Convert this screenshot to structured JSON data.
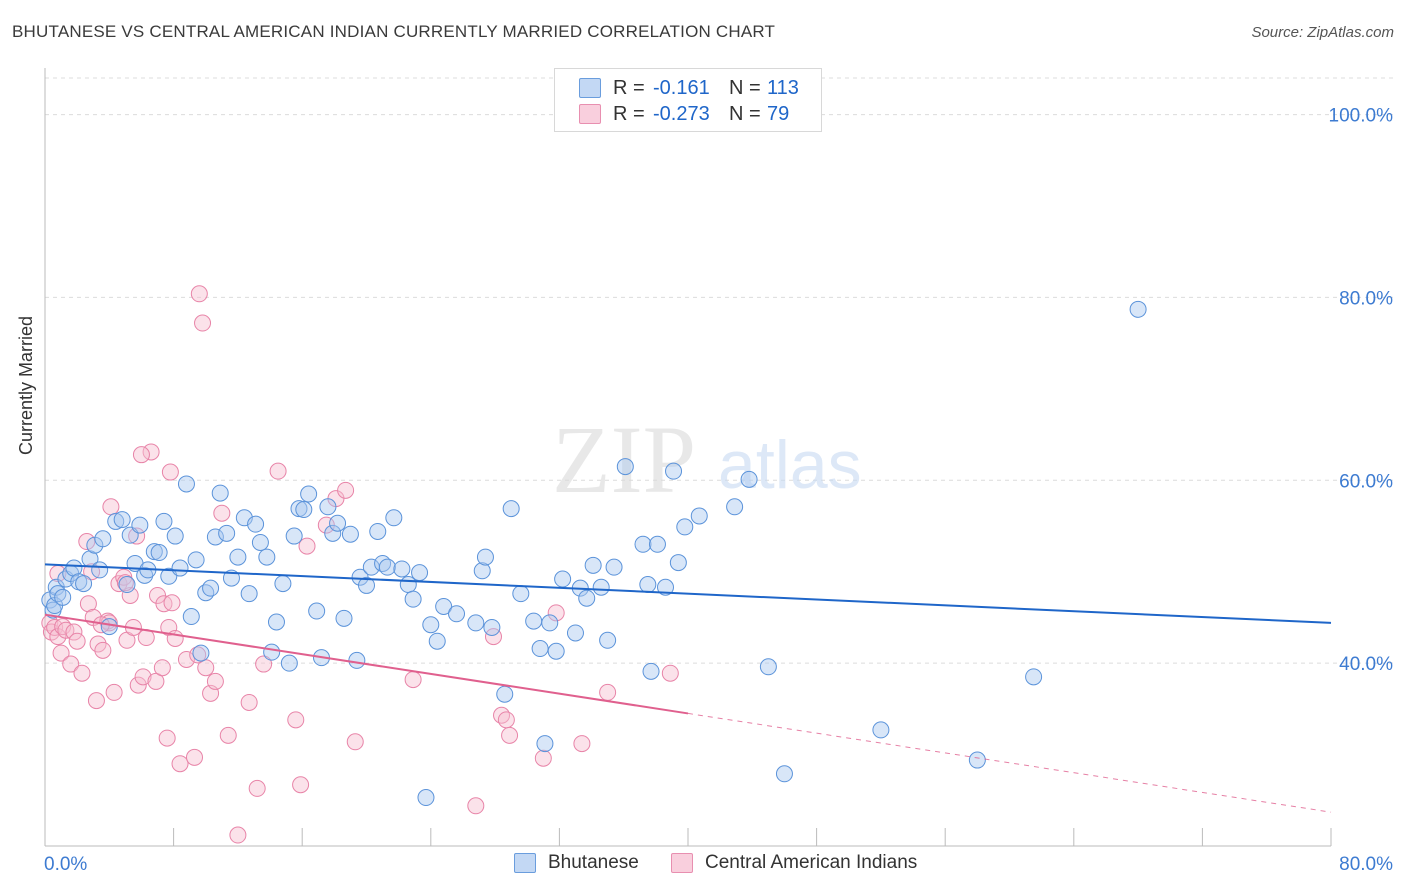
{
  "header": {
    "title": "BHUTANESE VS CENTRAL AMERICAN INDIAN CURRENTLY MARRIED CORRELATION CHART",
    "source": "Source: ZipAtlas.com"
  },
  "legend": {
    "rows": [
      {
        "r_label": "R =",
        "r_value": "-0.161",
        "n_label": "N =",
        "n_value": "113"
      },
      {
        "r_label": "R =",
        "r_value": "-0.273",
        "n_label": "N =",
        "n_value": "79"
      }
    ]
  },
  "watermark": {
    "zip": "ZIP",
    "atlas": "atlas"
  },
  "colors": {
    "blue_fill": "#a9c8f0",
    "blue_stroke": "#5b93da",
    "blue_line": "#1f66c9",
    "pink_fill": "#f7bfd1",
    "pink_stroke": "#e884a8",
    "pink_line": "#e0608e",
    "axis_text": "#3d7bd1",
    "grid": "#dcdcdc"
  },
  "chart_data": {
    "type": "scatter",
    "title": "BHUTANESE VS CENTRAL AMERICAN INDIAN CURRENTLY MARRIED CORRELATION CHART",
    "xlabel": "",
    "ylabel": "Currently Married",
    "xlim": [
      0,
      80
    ],
    "ylim": [
      20,
      104
    ],
    "x_tick_labels": [
      "0.0%",
      "80.0%"
    ],
    "y_ticks": [
      40,
      60,
      80,
      100
    ],
    "y_tick_labels": [
      "40.0%",
      "60.0%",
      "80.0%",
      "100.0%"
    ],
    "grid": true,
    "legend_position": "bottom",
    "series": [
      {
        "name": "Bhutanese",
        "trend": {
          "x": [
            0,
            80
          ],
          "y": [
            50.8,
            44.4
          ]
        },
        "points": [
          [
            0.3,
            46.9
          ],
          [
            0.5,
            45.8
          ],
          [
            0.6,
            46.3
          ],
          [
            0.7,
            48.3
          ],
          [
            0.8,
            47.6
          ],
          [
            1.1,
            47.2
          ],
          [
            1.3,
            49.2
          ],
          [
            1.6,
            49.8
          ],
          [
            1.8,
            50.4
          ],
          [
            2.1,
            48.9
          ],
          [
            2.4,
            48.7
          ],
          [
            2.8,
            51.4
          ],
          [
            3.1,
            52.9
          ],
          [
            3.4,
            50.2
          ],
          [
            3.6,
            53.6
          ],
          [
            4.0,
            44.0
          ],
          [
            4.4,
            55.5
          ],
          [
            4.8,
            55.7
          ],
          [
            5.1,
            48.6
          ],
          [
            5.3,
            54.0
          ],
          [
            5.6,
            50.9
          ],
          [
            5.9,
            55.1
          ],
          [
            6.2,
            49.6
          ],
          [
            6.4,
            50.2
          ],
          [
            6.8,
            52.2
          ],
          [
            7.1,
            52.1
          ],
          [
            7.4,
            55.5
          ],
          [
            7.7,
            49.5
          ],
          [
            8.1,
            53.9
          ],
          [
            8.4,
            50.4
          ],
          [
            8.8,
            59.6
          ],
          [
            9.1,
            45.1
          ],
          [
            9.4,
            51.3
          ],
          [
            9.7,
            41.1
          ],
          [
            10.0,
            47.7
          ],
          [
            10.3,
            48.2
          ],
          [
            10.6,
            53.8
          ],
          [
            10.9,
            58.6
          ],
          [
            11.3,
            54.2
          ],
          [
            11.6,
            49.3
          ],
          [
            12.0,
            51.6
          ],
          [
            12.4,
            55.9
          ],
          [
            12.7,
            47.6
          ],
          [
            13.1,
            55.2
          ],
          [
            13.4,
            53.2
          ],
          [
            13.8,
            51.6
          ],
          [
            14.1,
            41.2
          ],
          [
            14.4,
            44.5
          ],
          [
            14.8,
            48.7
          ],
          [
            15.2,
            40.0
          ],
          [
            15.5,
            53.9
          ],
          [
            15.8,
            56.9
          ],
          [
            16.1,
            56.8
          ],
          [
            16.4,
            58.5
          ],
          [
            16.9,
            45.7
          ],
          [
            17.2,
            40.6
          ],
          [
            17.6,
            57.1
          ],
          [
            17.9,
            54.2
          ],
          [
            18.2,
            55.3
          ],
          [
            18.6,
            44.9
          ],
          [
            19.0,
            54.1
          ],
          [
            19.4,
            40.3
          ],
          [
            19.6,
            49.4
          ],
          [
            20.0,
            48.5
          ],
          [
            20.3,
            50.5
          ],
          [
            20.7,
            54.4
          ],
          [
            21.0,
            50.9
          ],
          [
            21.3,
            50.5
          ],
          [
            21.7,
            55.9
          ],
          [
            22.2,
            50.3
          ],
          [
            22.6,
            48.6
          ],
          [
            22.9,
            47.0
          ],
          [
            23.3,
            49.9
          ],
          [
            23.7,
            25.3
          ],
          [
            24.0,
            44.2
          ],
          [
            24.4,
            42.4
          ],
          [
            24.8,
            46.2
          ],
          [
            25.6,
            45.4
          ],
          [
            26.8,
            44.4
          ],
          [
            27.2,
            50.1
          ],
          [
            27.4,
            51.6
          ],
          [
            27.8,
            43.9
          ],
          [
            28.6,
            36.6
          ],
          [
            29.0,
            56.9
          ],
          [
            29.6,
            47.6
          ],
          [
            30.4,
            44.6
          ],
          [
            30.8,
            41.6
          ],
          [
            31.1,
            31.2
          ],
          [
            31.4,
            44.4
          ],
          [
            31.8,
            41.3
          ],
          [
            32.2,
            49.2
          ],
          [
            33.0,
            43.3
          ],
          [
            33.3,
            48.2
          ],
          [
            33.7,
            47.1
          ],
          [
            34.1,
            50.7
          ],
          [
            34.6,
            48.3
          ],
          [
            35.0,
            42.5
          ],
          [
            35.4,
            50.5
          ],
          [
            36.1,
            61.5
          ],
          [
            37.2,
            53.0
          ],
          [
            37.5,
            48.6
          ],
          [
            37.7,
            39.1
          ],
          [
            38.1,
            53.0
          ],
          [
            38.6,
            48.3
          ],
          [
            39.1,
            61.0
          ],
          [
            39.4,
            51.0
          ],
          [
            39.8,
            54.9
          ],
          [
            40.7,
            56.1
          ],
          [
            42.9,
            57.1
          ],
          [
            43.8,
            60.1
          ],
          [
            45.0,
            39.6
          ],
          [
            46.0,
            27.9
          ],
          [
            52.0,
            32.7
          ],
          [
            58.0,
            29.4
          ],
          [
            61.5,
            38.5
          ],
          [
            68.0,
            78.7
          ]
        ]
      },
      {
        "name": "Central American Indians",
        "trend": {
          "x": [
            0,
            40
          ],
          "y": [
            45.3,
            34.5
          ]
        },
        "points": [
          [
            0.3,
            44.4
          ],
          [
            0.4,
            43.4
          ],
          [
            0.6,
            43.9
          ],
          [
            0.8,
            42.9
          ],
          [
            1.0,
            41.1
          ],
          [
            1.1,
            44.0
          ],
          [
            1.3,
            43.6
          ],
          [
            1.6,
            39.9
          ],
          [
            1.8,
            43.4
          ],
          [
            2.0,
            42.4
          ],
          [
            2.3,
            38.9
          ],
          [
            2.6,
            53.3
          ],
          [
            2.7,
            46.5
          ],
          [
            3.0,
            45.0
          ],
          [
            3.2,
            35.9
          ],
          [
            3.3,
            42.1
          ],
          [
            3.6,
            41.4
          ],
          [
            3.9,
            44.6
          ],
          [
            4.1,
            57.1
          ],
          [
            4.3,
            36.8
          ],
          [
            4.6,
            48.7
          ],
          [
            4.9,
            49.4
          ],
          [
            5.1,
            42.5
          ],
          [
            5.3,
            47.4
          ],
          [
            5.5,
            43.9
          ],
          [
            5.7,
            53.9
          ],
          [
            5.8,
            37.6
          ],
          [
            6.1,
            38.5
          ],
          [
            6.3,
            42.8
          ],
          [
            6.6,
            63.1
          ],
          [
            6.9,
            38.0
          ],
          [
            7.0,
            47.4
          ],
          [
            7.3,
            39.5
          ],
          [
            7.4,
            46.5
          ],
          [
            7.6,
            31.8
          ],
          [
            7.7,
            43.9
          ],
          [
            7.9,
            46.6
          ],
          [
            8.1,
            42.7
          ],
          [
            8.4,
            29.0
          ],
          [
            8.8,
            40.4
          ],
          [
            9.3,
            29.7
          ],
          [
            9.6,
            80.4
          ],
          [
            9.8,
            77.2
          ],
          [
            10.0,
            39.5
          ],
          [
            10.3,
            36.7
          ],
          [
            10.6,
            38.0
          ],
          [
            11.0,
            56.4
          ],
          [
            11.4,
            32.1
          ],
          [
            12.0,
            21.2
          ],
          [
            12.7,
            35.7
          ],
          [
            13.2,
            26.3
          ],
          [
            13.6,
            39.9
          ],
          [
            14.5,
            61.0
          ],
          [
            15.6,
            33.8
          ],
          [
            15.9,
            26.7
          ],
          [
            16.3,
            52.8
          ],
          [
            17.5,
            55.1
          ],
          [
            18.1,
            58.0
          ],
          [
            18.7,
            58.9
          ],
          [
            19.3,
            31.4
          ],
          [
            22.9,
            38.2
          ],
          [
            26.8,
            24.4
          ],
          [
            27.9,
            42.9
          ],
          [
            28.4,
            34.3
          ],
          [
            28.7,
            33.8
          ],
          [
            28.9,
            32.1
          ],
          [
            31.0,
            29.6
          ],
          [
            31.8,
            45.5
          ],
          [
            33.4,
            31.2
          ],
          [
            35.0,
            36.8
          ],
          [
            38.9,
            38.9
          ],
          [
            6.0,
            62.8
          ],
          [
            7.8,
            60.9
          ],
          [
            5.0,
            48.8
          ],
          [
            2.9,
            50.0
          ],
          [
            4.0,
            44.4
          ],
          [
            3.5,
            44.2
          ],
          [
            9.5,
            40.9
          ],
          [
            0.8,
            49.8
          ]
        ]
      }
    ]
  },
  "bottom_legend": {
    "items": [
      "Bhutanese",
      "Central American Indians"
    ]
  }
}
